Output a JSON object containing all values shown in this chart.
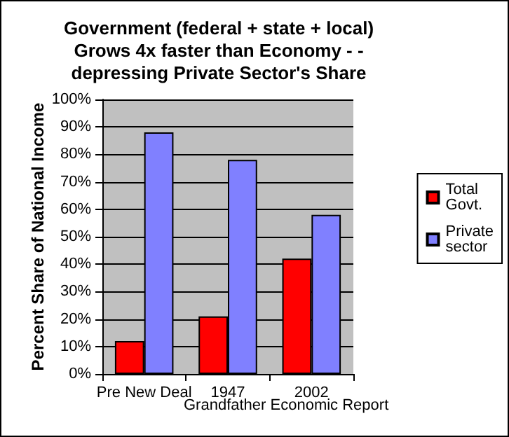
{
  "chart_data": {
    "type": "bar",
    "title": "Government (federal + state + local)\nGrows 4x faster than Economy - -\ndepressing Private Sector's Share",
    "ylabel": "Percent Share of National Income",
    "categories": [
      "Pre New Deal",
      "1947",
      "2002"
    ],
    "series": [
      {
        "name": "Total Govt.",
        "color": "#ff0000",
        "values": [
          12,
          21,
          42
        ]
      },
      {
        "name": "Private sector",
        "color": "#8080ff",
        "values": [
          88,
          78,
          58
        ]
      }
    ],
    "ylim": [
      0,
      100
    ],
    "yticks": [
      {
        "value": 0,
        "label": "0%"
      },
      {
        "value": 10,
        "label": "10%"
      },
      {
        "value": 20,
        "label": "20%"
      },
      {
        "value": 30,
        "label": "30%"
      },
      {
        "value": 40,
        "label": "40%"
      },
      {
        "value": 50,
        "label": "50%"
      },
      {
        "value": 60,
        "label": "60%"
      },
      {
        "value": 70,
        "label": "70%"
      },
      {
        "value": 80,
        "label": "80%"
      },
      {
        "value": 90,
        "label": "90%"
      },
      {
        "value": 100,
        "label": "100%"
      }
    ],
    "grid": "y",
    "legend": "right",
    "annotations": [
      "Grandfather Economic Report"
    ]
  }
}
